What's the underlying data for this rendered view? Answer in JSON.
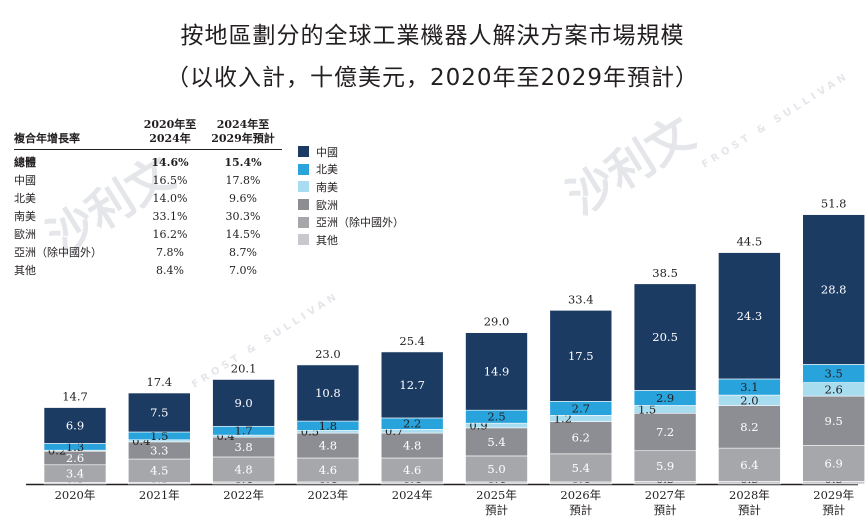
{
  "title_line1": "按地區劃分的全球工業機器人解決方案市場規模",
  "title_line2": "（以收入計，十億美元，2020年至2029年預計）",
  "watermark": [
    "沙利文",
    "FROST & SULLIVAN"
  ],
  "cagr_table": {
    "header": [
      "複合年增長率",
      "2020年至\n2024年",
      "2024年至\n2029年預計"
    ],
    "rows": [
      {
        "label": "總體",
        "a": "14.6%",
        "b": "15.4%"
      },
      {
        "label": "中國",
        "a": "16.5%",
        "b": "17.8%"
      },
      {
        "label": "北美",
        "a": "14.0%",
        "b": "9.6%"
      },
      {
        "label": "南美",
        "a": "33.1%",
        "b": "30.3%"
      },
      {
        "label": "歐洲",
        "a": "16.2%",
        "b": "14.5%"
      },
      {
        "label": "亞洲（除中國外）",
        "a": "7.8%",
        "b": "8.7%"
      },
      {
        "label": "其他",
        "a": "8.4%",
        "b": "7.0%"
      }
    ]
  },
  "chart_data": {
    "type": "bar",
    "stacked": true,
    "title": "按地區劃分的全球工業機器人解決方案市場規模（以收入計，十億美元，2020年至2029年預計）",
    "categories": [
      "2020年",
      "2021年",
      "2022年",
      "2023年",
      "2024年",
      "2025年\n預計",
      "2026年\n預計",
      "2027年\n預計",
      "2028年\n預計",
      "2029年\n預計"
    ],
    "totals": [
      "14.7",
      "17.4",
      "20.1",
      "23.0",
      "25.4",
      "29.0",
      "33.4",
      "38.5",
      "44.5",
      "51.8"
    ],
    "series": [
      {
        "name": "其他",
        "color": "#c8c9cc",
        "values": [
          "0.3",
          "0.3",
          "0.4",
          "0.4",
          "0.4",
          "0.4",
          "0.4",
          "0.5",
          "0.5",
          "0.5"
        ]
      },
      {
        "name": "亞洲（除中國外）",
        "color": "#a5a7aa",
        "values": [
          "3.4",
          "4.5",
          "4.8",
          "4.6",
          "4.6",
          "5.0",
          "5.4",
          "5.9",
          "6.4",
          "6.9"
        ]
      },
      {
        "name": "歐洲",
        "color": "#8c8e93",
        "values": [
          "2.6",
          "3.3",
          "3.8",
          "4.8",
          "4.8",
          "5.4",
          "6.2",
          "7.2",
          "8.2",
          "9.5"
        ]
      },
      {
        "name": "南美",
        "color": "#a8dcef",
        "values": [
          "0.2",
          "0.4",
          "0.4",
          "0.5",
          "0.7",
          "0.9",
          "1.2",
          "1.5",
          "2.0",
          "2.6"
        ]
      },
      {
        "name": "北美",
        "color": "#29a3dc",
        "values": [
          "1.3",
          "1.5",
          "1.7",
          "1.8",
          "2.2",
          "2.5",
          "2.7",
          "2.9",
          "3.1",
          "3.5"
        ]
      },
      {
        "name": "中國",
        "color": "#1c3b63",
        "values": [
          "6.9",
          "7.5",
          "9.0",
          "10.8",
          "12.7",
          "14.9",
          "17.5",
          "20.5",
          "24.3",
          "28.8"
        ]
      }
    ],
    "legend": [
      "中國",
      "北美",
      "南美",
      "歐洲",
      "亞洲（除中國外）",
      "其他"
    ],
    "ylim": [
      0,
      52
    ],
    "xlabel": "",
    "ylabel": ""
  }
}
